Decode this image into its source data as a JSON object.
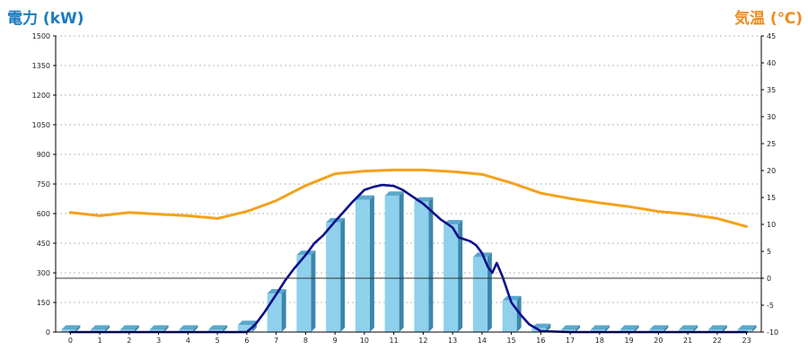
{
  "chart_data": {
    "type": "bar",
    "y_left_label": "電力 (kW)",
    "y_right_label": "気温 (℃)",
    "categories": [
      "0",
      "1",
      "2",
      "3",
      "4",
      "5",
      "6",
      "7",
      "8",
      "9",
      "10",
      "11",
      "12",
      "13",
      "14",
      "15",
      "16",
      "17",
      "18",
      "19",
      "20",
      "21",
      "22",
      "23"
    ],
    "ylim_left": [
      0,
      1500
    ],
    "yticks_left": [
      0,
      150,
      300,
      450,
      600,
      750,
      900,
      1050,
      1200,
      1350,
      1500
    ],
    "ylim_right": [
      -10,
      45
    ],
    "yticks_right": [
      -10,
      -5,
      0,
      5,
      10,
      15,
      20,
      25,
      30,
      35,
      40,
      45
    ],
    "grid": true,
    "series": [
      {
        "kind": "bar",
        "axis": "left",
        "color": "#8fd0ec",
        "values": [
          12,
          12,
          12,
          12,
          12,
          12,
          35,
          195,
          390,
          555,
          670,
          690,
          660,
          545,
          380,
          160,
          20,
          12,
          12,
          12,
          12,
          12,
          12,
          12
        ]
      },
      {
        "kind": "line",
        "axis": "left",
        "color": "#0d0f8a",
        "x": [
          0,
          6,
          6.3,
          6.6,
          7,
          7.3,
          7.6,
          8,
          8.3,
          8.6,
          9,
          9.3,
          9.6,
          10,
          10.3,
          10.6,
          11,
          11.3,
          11.6,
          12,
          12.3,
          12.6,
          13,
          13.2,
          13.4,
          13.6,
          13.8,
          14,
          14.2,
          14.35,
          14.5,
          14.7,
          15,
          15.3,
          15.6,
          16,
          17,
          23
        ],
        "values": [
          0,
          0,
          40,
          100,
          190,
          260,
          320,
          390,
          450,
          490,
          560,
          610,
          660,
          720,
          735,
          745,
          740,
          720,
          690,
          650,
          610,
          570,
          530,
          480,
          470,
          460,
          440,
          400,
          330,
          300,
          350,
          280,
          150,
          90,
          40,
          5,
          0,
          0
        ]
      },
      {
        "kind": "line",
        "axis": "right",
        "color": "#f4a11a",
        "x": [
          0,
          1,
          2,
          3,
          4,
          5,
          6,
          7,
          8,
          9,
          10,
          11,
          12,
          13,
          14,
          15,
          16,
          17,
          18,
          19,
          20,
          21,
          22,
          23
        ],
        "values": [
          12.2,
          11.6,
          12.2,
          11.9,
          11.6,
          11.1,
          12.4,
          14.4,
          17.2,
          19.4,
          19.9,
          20.1,
          20.1,
          19.8,
          19.3,
          17.7,
          15.8,
          14.8,
          14.0,
          13.3,
          12.4,
          11.9,
          11.1,
          9.6
        ]
      }
    ]
  }
}
